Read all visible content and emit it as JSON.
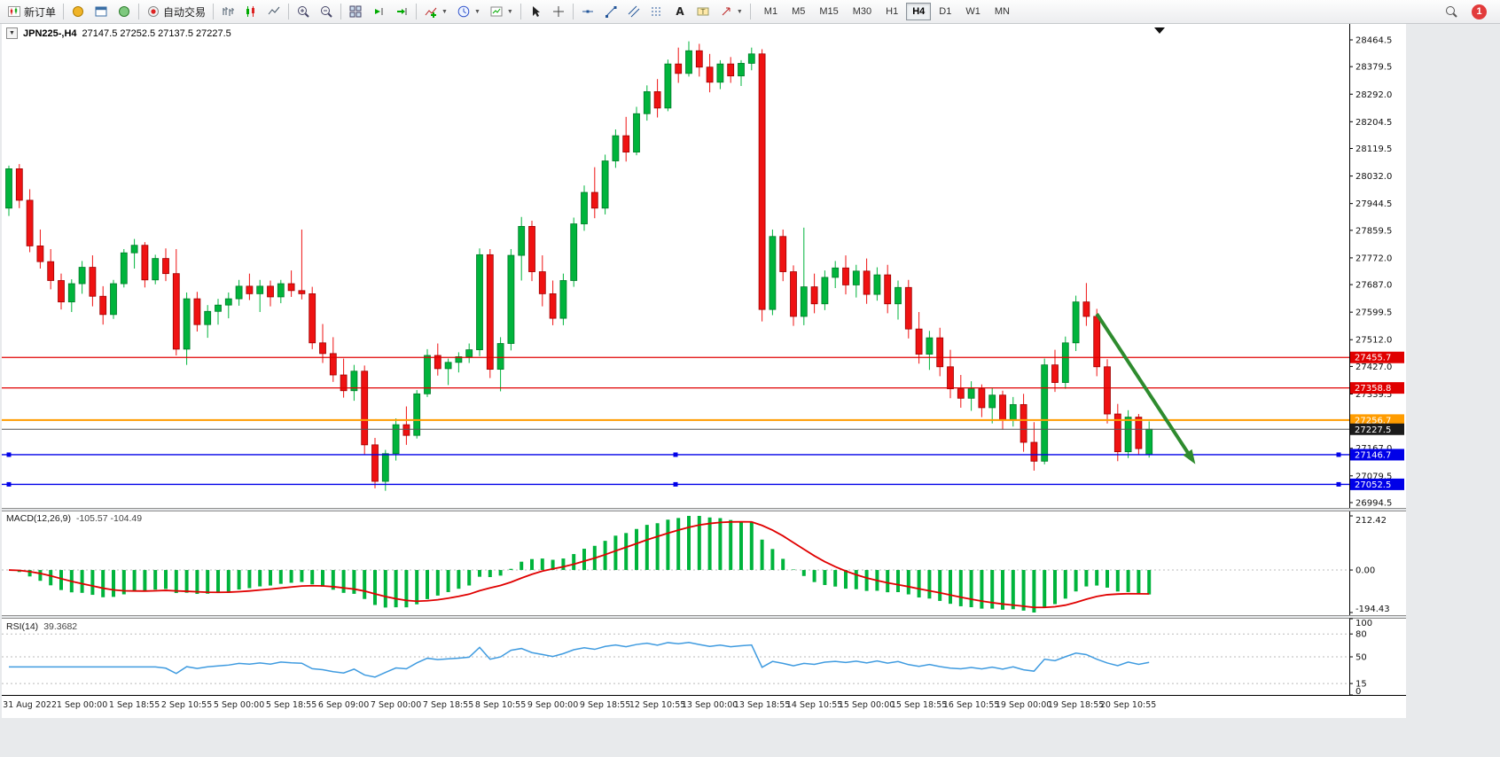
{
  "toolbar": {
    "new_order": {
      "label": "新订单"
    },
    "autotrade": {
      "label": "自动交易"
    },
    "timeframes": {
      "items": [
        "M1",
        "M5",
        "M15",
        "M30",
        "H1",
        "H4",
        "D1",
        "W1",
        "MN"
      ],
      "active": "H4"
    },
    "notifications": {
      "badge": "1"
    }
  },
  "chart": {
    "header": {
      "symbol_period": "JPN225-,H4",
      "ohlc": "27147.5 27252.5 27137.5 27227.5"
    }
  },
  "chart_data": {
    "type": "candlestick",
    "symbol": "JPN225-",
    "timeframe": "H4",
    "title": "JPN225-,H4",
    "ohlc_readout": {
      "open": 27147.5,
      "high": 27252.5,
      "low": 27137.5,
      "close": 27227.5
    },
    "colors": {
      "bull": "#00b43c",
      "bear": "#ef1212",
      "background": "#ffffff"
    },
    "price_axis": {
      "labels": [
        "28464.5",
        "28379.5",
        "28292.0",
        "28204.5",
        "28119.5",
        "28032.0",
        "27944.5",
        "27859.5",
        "27772.0",
        "27687.0",
        "27599.5",
        "27512.0",
        "27427.0",
        "27339.5",
        "27252.0",
        "27167.0",
        "27079.5",
        "26994.5"
      ]
    },
    "levels": [
      {
        "price": 27455.7,
        "label": "27455.7",
        "color": "#e00000",
        "width": 1.2,
        "selected": false
      },
      {
        "price": 27358.8,
        "label": "27358.8",
        "color": "#e00000",
        "width": 1.2,
        "selected": false
      },
      {
        "price": 27256.7,
        "label": "27256.7",
        "color": "#ff9c00",
        "width": 2,
        "selected": false
      },
      {
        "price": 27146.7,
        "label": "27146.7",
        "color": "#0000e8",
        "width": 1.4,
        "selected": true
      },
      {
        "price": 27052.5,
        "label": "27052.5",
        "color": "#0000e8",
        "width": 1.4,
        "selected": true
      }
    ],
    "current_price": {
      "value": 27227.5,
      "label": "27227.5",
      "color": "#1b1b1b"
    },
    "trend_arrow": {
      "from_index": 104,
      "from_price": 27594,
      "to_index": 113,
      "to_price": 27138,
      "color": "#2e8b2e",
      "width": 4
    },
    "time_axis": [
      "31 Aug 2022",
      "1 Sep 00:00",
      "1 Sep 18:55",
      "2 Sep 10:55",
      "5 Sep 00:00",
      "5 Sep 18:55",
      "6 Sep 09:00",
      "7 Sep 00:00",
      "7 Sep 18:55",
      "8 Sep 10:55",
      "9 Sep 00:00",
      "9 Sep 18:55",
      "12 Sep 10:55",
      "13 Sep 00:00",
      "13 Sep 18:55",
      "14 Sep 10:55",
      "15 Sep 00:00",
      "15 Sep 18:55",
      "16 Sep 10:55",
      "19 Sep 00:00",
      "19 Sep 18:55",
      "20 Sep 10:55"
    ],
    "indicators": {
      "macd": {
        "label": "MACD(12,26,9)",
        "values": "-105.57 -104.49",
        "fast": 12,
        "slow": 26,
        "signal": 9,
        "axis_labels": [
          "212.42",
          "0.00",
          "-194.43"
        ],
        "histogram_color": "#00b43c",
        "signal_color": "#e00000"
      },
      "rsi": {
        "label": "RSI(14)",
        "value": "39.3682",
        "period": 14,
        "axis_labels": [
          "100",
          "80",
          "50",
          "15",
          "0"
        ],
        "levels": [
          80,
          50,
          15
        ],
        "line_color": "#3f9be0"
      }
    },
    "candles": [
      [
        27930,
        28065,
        27905,
        28055
      ],
      [
        28055,
        28070,
        27930,
        27955
      ],
      [
        27955,
        27990,
        27790,
        27810
      ],
      [
        27810,
        27862,
        27738,
        27760
      ],
      [
        27760,
        27800,
        27672,
        27700
      ],
      [
        27700,
        27722,
        27608,
        27632
      ],
      [
        27632,
        27704,
        27600,
        27690
      ],
      [
        27690,
        27762,
        27658,
        27742
      ],
      [
        27742,
        27780,
        27618,
        27650
      ],
      [
        27650,
        27682,
        27560,
        27592
      ],
      [
        27592,
        27702,
        27578,
        27690
      ],
      [
        27690,
        27800,
        27678,
        27788
      ],
      [
        27788,
        27832,
        27738,
        27812
      ],
      [
        27812,
        27822,
        27678,
        27702
      ],
      [
        27702,
        27782,
        27688,
        27770
      ],
      [
        27770,
        27802,
        27698,
        27722
      ],
      [
        27722,
        27800,
        27462,
        27482
      ],
      [
        27482,
        27662,
        27432,
        27642
      ],
      [
        27642,
        27664,
        27538,
        27560
      ],
      [
        27560,
        27622,
        27518,
        27602
      ],
      [
        27602,
        27642,
        27560,
        27622
      ],
      [
        27622,
        27662,
        27580,
        27642
      ],
      [
        27642,
        27702,
        27620,
        27682
      ],
      [
        27682,
        27722,
        27638,
        27658
      ],
      [
        27658,
        27702,
        27600,
        27682
      ],
      [
        27682,
        27700,
        27618,
        27648
      ],
      [
        27648,
        27702,
        27628,
        27690
      ],
      [
        27690,
        27732,
        27648,
        27668
      ],
      [
        27668,
        27862,
        27640,
        27658
      ],
      [
        27658,
        27680,
        27482,
        27502
      ],
      [
        27502,
        27562,
        27438,
        27468
      ],
      [
        27468,
        27520,
        27378,
        27400
      ],
      [
        27400,
        27452,
        27328,
        27350
      ],
      [
        27350,
        27432,
        27318,
        27412
      ],
      [
        27412,
        27430,
        27148,
        27178
      ],
      [
        27178,
        27200,
        27040,
        27062
      ],
      [
        27062,
        27162,
        27032,
        27150
      ],
      [
        27150,
        27262,
        27128,
        27242
      ],
      [
        27242,
        27300,
        27178,
        27208
      ],
      [
        27208,
        27352,
        27198,
        27340
      ],
      [
        27340,
        27482,
        27330,
        27462
      ],
      [
        27462,
        27500,
        27398,
        27420
      ],
      [
        27420,
        27452,
        27368,
        27440
      ],
      [
        27440,
        27472,
        27408,
        27458
      ],
      [
        27458,
        27500,
        27438,
        27480
      ],
      [
        27480,
        27802,
        27460,
        27782
      ],
      [
        27782,
        27800,
        27390,
        27418
      ],
      [
        27418,
        27520,
        27348,
        27500
      ],
      [
        27500,
        27800,
        27478,
        27780
      ],
      [
        27780,
        27902,
        27700,
        27872
      ],
      [
        27872,
        27890,
        27698,
        27728
      ],
      [
        27728,
        27780,
        27618,
        27658
      ],
      [
        27658,
        27700,
        27558,
        27580
      ],
      [
        27580,
        27722,
        27558,
        27700
      ],
      [
        27700,
        27900,
        27680,
        27880
      ],
      [
        27880,
        28002,
        27858,
        27980
      ],
      [
        27980,
        28060,
        27898,
        27930
      ],
      [
        27930,
        28100,
        27910,
        28080
      ],
      [
        28080,
        28180,
        28058,
        28160
      ],
      [
        28160,
        28220,
        28078,
        28108
      ],
      [
        28108,
        28252,
        28098,
        28230
      ],
      [
        28230,
        28320,
        28208,
        28300
      ],
      [
        28300,
        28340,
        28218,
        28248
      ],
      [
        28248,
        28402,
        28238,
        28388
      ],
      [
        28388,
        28440,
        28328,
        28358
      ],
      [
        28358,
        28460,
        28348,
        28430
      ],
      [
        28430,
        28452,
        28348,
        28378
      ],
      [
        28378,
        28420,
        28298,
        28330
      ],
      [
        28330,
        28400,
        28308,
        28388
      ],
      [
        28388,
        28410,
        28328,
        28350
      ],
      [
        28350,
        28400,
        28318,
        28390
      ],
      [
        28390,
        28440,
        28368,
        28420
      ],
      [
        28420,
        28435,
        27570,
        27608
      ],
      [
        27608,
        27862,
        27590,
        27840
      ],
      [
        27840,
        27862,
        27698,
        27728
      ],
      [
        27728,
        27748,
        27556,
        27586
      ],
      [
        27586,
        27868,
        27558,
        27680
      ],
      [
        27680,
        27722,
        27596,
        27626
      ],
      [
        27626,
        27732,
        27606,
        27710
      ],
      [
        27710,
        27762,
        27676,
        27740
      ],
      [
        27740,
        27780,
        27656,
        27686
      ],
      [
        27686,
        27750,
        27646,
        27730
      ],
      [
        27730,
        27770,
        27626,
        27656
      ],
      [
        27656,
        27742,
        27636,
        27718
      ],
      [
        27718,
        27750,
        27596,
        27626
      ],
      [
        27626,
        27700,
        27576,
        27678
      ],
      [
        27678,
        27702,
        27516,
        27546
      ],
      [
        27546,
        27600,
        27436,
        27466
      ],
      [
        27466,
        27540,
        27416,
        27518
      ],
      [
        27518,
        27550,
        27396,
        27426
      ],
      [
        27426,
        27480,
        27326,
        27356
      ],
      [
        27356,
        27400,
        27296,
        27326
      ],
      [
        27326,
        27380,
        27286,
        27356
      ],
      [
        27356,
        27370,
        27266,
        27296
      ],
      [
        27296,
        27360,
        27246,
        27336
      ],
      [
        27336,
        27350,
        27226,
        27256
      ],
      [
        27256,
        27330,
        27236,
        27306
      ],
      [
        27306,
        27340,
        27156,
        27186
      ],
      [
        27186,
        27250,
        27096,
        27126
      ],
      [
        27126,
        27452,
        27116,
        27432
      ],
      [
        27432,
        27480,
        27346,
        27376
      ],
      [
        27376,
        27522,
        27356,
        27502
      ],
      [
        27502,
        27652,
        27476,
        27632
      ],
      [
        27632,
        27692,
        27556,
        27586
      ],
      [
        27586,
        27610,
        27396,
        27426
      ],
      [
        27426,
        27450,
        27246,
        27276
      ],
      [
        27276,
        27308,
        27126,
        27156
      ],
      [
        27156,
        27288,
        27136,
        27266
      ],
      [
        27266,
        27276,
        27146,
        27166
      ],
      [
        27147.5,
        27252.5,
        27137.5,
        27227.5
      ]
    ]
  }
}
